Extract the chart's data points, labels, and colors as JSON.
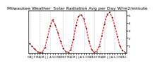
{
  "title": "Milwaukee Weather  Solar Radiation Avg per Day W/m2/minute",
  "x_labels": [
    "'08",
    "J",
    "F",
    "M",
    "A",
    "M",
    "J",
    "J",
    "A",
    "S",
    "O",
    "N",
    "D",
    "'09",
    "F",
    "M",
    "A",
    "M",
    "J",
    "J",
    "A",
    "S",
    "O",
    "N",
    "D",
    "'10",
    "F",
    "M",
    "A",
    "M",
    "J",
    "J",
    "A",
    "S",
    "O",
    "N",
    "D",
    "'11"
  ],
  "y_values": [
    130,
    90,
    55,
    25,
    8,
    15,
    75,
    210,
    360,
    440,
    370,
    270,
    160,
    70,
    25,
    15,
    45,
    190,
    370,
    490,
    510,
    450,
    330,
    160,
    50,
    15,
    25,
    95,
    230,
    390,
    510,
    540,
    470,
    360,
    220,
    90,
    35,
    15
  ],
  "line_color": "#ff0000",
  "dot_color": "#000000",
  "background_color": "#ffffff",
  "grid_color": "#999999",
  "ylim": [
    0,
    560
  ],
  "ytick_values": [
    100,
    200,
    300,
    400,
    500
  ],
  "ytick_labels": [
    "1",
    "2",
    "3",
    "4",
    "5"
  ],
  "title_fontsize": 4.5,
  "tick_fontsize": 3.0,
  "line_width": 0.8,
  "dot_size": 1.2,
  "grid_positions": [
    0,
    4,
    8,
    13,
    17,
    21,
    25,
    29,
    33,
    37
  ]
}
